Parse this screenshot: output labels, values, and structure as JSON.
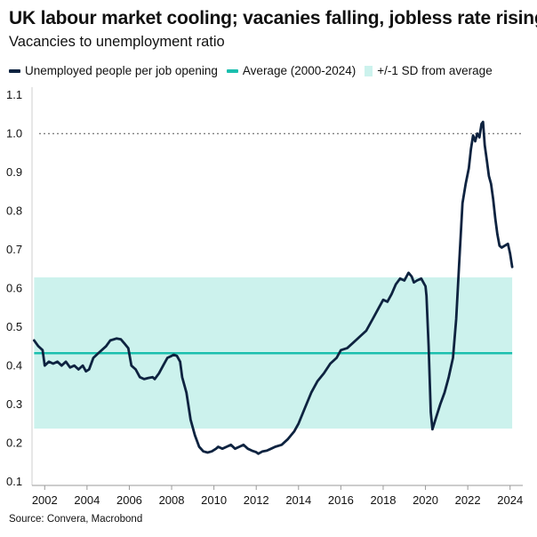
{
  "chart_data": {
    "type": "line",
    "title": "UK labour market cooling; vacanies falling, jobless rate rising",
    "subtitle": "Vacancies to unemployment ratio",
    "source": "Source: Convera, Macrobond",
    "xlim": [
      2001.4,
      2024.6
    ],
    "ylim": [
      0.09,
      1.12
    ],
    "x_ticks": [
      2002,
      2004,
      2006,
      2008,
      2010,
      2012,
      2014,
      2016,
      2018,
      2020,
      2022,
      2024
    ],
    "y_ticks": [
      0.1,
      0.2,
      0.3,
      0.4,
      0.5,
      0.6,
      0.7,
      0.8,
      0.9,
      1.0,
      1.1
    ],
    "reference_line": {
      "y": 1.0,
      "style": "dotted"
    },
    "legend": {
      "position": "top",
      "entries": [
        {
          "label": "Unemployed people per job opening",
          "kind": "line",
          "color": "#0e2340"
        },
        {
          "label": "Average (2000-2024)",
          "kind": "line",
          "color": "#1bbfae"
        },
        {
          "label": "+/-1 SD from average",
          "kind": "box",
          "color": "#ccf2ed"
        }
      ]
    },
    "average": {
      "value": 0.432,
      "color": "#1bbfae"
    },
    "sd_band": {
      "low": 0.237,
      "high": 0.628,
      "color": "#ccf2ed"
    },
    "series": [
      {
        "name": "Unemployed people per job opening",
        "color": "#0e2340",
        "points": [
          [
            2001.5,
            0.465
          ],
          [
            2001.7,
            0.45
          ],
          [
            2001.9,
            0.44
          ],
          [
            2002.0,
            0.4
          ],
          [
            2002.2,
            0.41
          ],
          [
            2002.4,
            0.405
          ],
          [
            2002.6,
            0.41
          ],
          [
            2002.8,
            0.4
          ],
          [
            2003.0,
            0.41
          ],
          [
            2003.2,
            0.395
          ],
          [
            2003.4,
            0.4
          ],
          [
            2003.6,
            0.39
          ],
          [
            2003.8,
            0.4
          ],
          [
            2003.95,
            0.385
          ],
          [
            2004.1,
            0.39
          ],
          [
            2004.3,
            0.42
          ],
          [
            2004.6,
            0.435
          ],
          [
            2004.9,
            0.45
          ],
          [
            2005.1,
            0.465
          ],
          [
            2005.4,
            0.47
          ],
          [
            2005.6,
            0.468
          ],
          [
            2005.8,
            0.455
          ],
          [
            2005.95,
            0.445
          ],
          [
            2006.1,
            0.4
          ],
          [
            2006.3,
            0.39
          ],
          [
            2006.5,
            0.37
          ],
          [
            2006.7,
            0.365
          ],
          [
            2006.9,
            0.368
          ],
          [
            2007.1,
            0.37
          ],
          [
            2007.2,
            0.365
          ],
          [
            2007.4,
            0.38
          ],
          [
            2007.6,
            0.4
          ],
          [
            2007.8,
            0.42
          ],
          [
            2008.0,
            0.425
          ],
          [
            2008.1,
            0.428
          ],
          [
            2008.25,
            0.425
          ],
          [
            2008.4,
            0.41
          ],
          [
            2008.5,
            0.37
          ],
          [
            2008.7,
            0.33
          ],
          [
            2008.9,
            0.26
          ],
          [
            2009.1,
            0.22
          ],
          [
            2009.3,
            0.19
          ],
          [
            2009.5,
            0.178
          ],
          [
            2009.7,
            0.175
          ],
          [
            2009.9,
            0.178
          ],
          [
            2010.1,
            0.185
          ],
          [
            2010.2,
            0.19
          ],
          [
            2010.4,
            0.185
          ],
          [
            2010.6,
            0.19
          ],
          [
            2010.8,
            0.195
          ],
          [
            2011.0,
            0.185
          ],
          [
            2011.2,
            0.19
          ],
          [
            2011.4,
            0.195
          ],
          [
            2011.6,
            0.185
          ],
          [
            2011.8,
            0.18
          ],
          [
            2012.0,
            0.176
          ],
          [
            2012.1,
            0.172
          ],
          [
            2012.3,
            0.178
          ],
          [
            2012.5,
            0.18
          ],
          [
            2012.7,
            0.185
          ],
          [
            2012.9,
            0.19
          ],
          [
            2013.2,
            0.195
          ],
          [
            2013.5,
            0.21
          ],
          [
            2013.8,
            0.23
          ],
          [
            2014.0,
            0.25
          ],
          [
            2014.3,
            0.29
          ],
          [
            2014.6,
            0.33
          ],
          [
            2014.9,
            0.36
          ],
          [
            2015.2,
            0.38
          ],
          [
            2015.5,
            0.405
          ],
          [
            2015.8,
            0.42
          ],
          [
            2016.0,
            0.44
          ],
          [
            2016.3,
            0.445
          ],
          [
            2016.6,
            0.46
          ],
          [
            2016.9,
            0.475
          ],
          [
            2017.2,
            0.49
          ],
          [
            2017.5,
            0.52
          ],
          [
            2017.8,
            0.55
          ],
          [
            2018.0,
            0.57
          ],
          [
            2018.2,
            0.565
          ],
          [
            2018.4,
            0.585
          ],
          [
            2018.6,
            0.61
          ],
          [
            2018.8,
            0.625
          ],
          [
            2019.0,
            0.62
          ],
          [
            2019.2,
            0.64
          ],
          [
            2019.35,
            0.63
          ],
          [
            2019.45,
            0.615
          ],
          [
            2019.6,
            0.62
          ],
          [
            2019.8,
            0.625
          ],
          [
            2019.9,
            0.615
          ],
          [
            2020.0,
            0.605
          ],
          [
            2020.05,
            0.58
          ],
          [
            2020.15,
            0.45
          ],
          [
            2020.25,
            0.28
          ],
          [
            2020.33,
            0.235
          ],
          [
            2020.5,
            0.265
          ],
          [
            2020.7,
            0.3
          ],
          [
            2020.9,
            0.33
          ],
          [
            2021.1,
            0.37
          ],
          [
            2021.3,
            0.42
          ],
          [
            2021.45,
            0.52
          ],
          [
            2021.6,
            0.67
          ],
          [
            2021.75,
            0.82
          ],
          [
            2021.9,
            0.87
          ],
          [
            2022.05,
            0.91
          ],
          [
            2022.15,
            0.96
          ],
          [
            2022.25,
            0.995
          ],
          [
            2022.35,
            0.98
          ],
          [
            2022.45,
            1.0
          ],
          [
            2022.55,
            0.99
          ],
          [
            2022.65,
            1.025
          ],
          [
            2022.72,
            1.03
          ],
          [
            2022.8,
            0.97
          ],
          [
            2022.9,
            0.93
          ],
          [
            2023.0,
            0.89
          ],
          [
            2023.1,
            0.87
          ],
          [
            2023.2,
            0.83
          ],
          [
            2023.3,
            0.78
          ],
          [
            2023.4,
            0.74
          ],
          [
            2023.5,
            0.71
          ],
          [
            2023.6,
            0.705
          ],
          [
            2023.75,
            0.71
          ],
          [
            2023.9,
            0.715
          ],
          [
            2024.0,
            0.69
          ],
          [
            2024.1,
            0.655
          ]
        ]
      }
    ]
  }
}
